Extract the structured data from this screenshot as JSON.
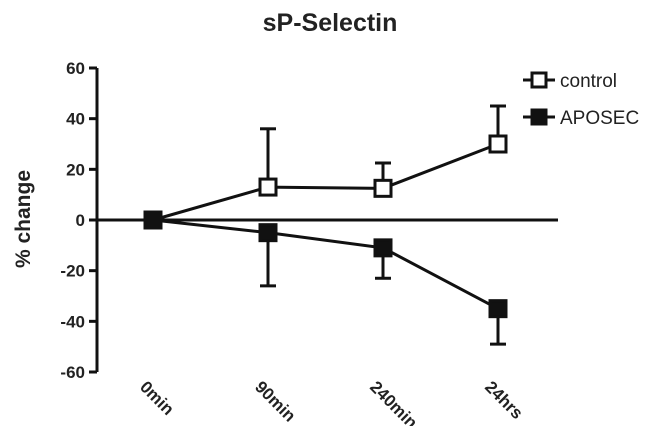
{
  "chart_data": {
    "type": "line",
    "title": "sP-Selectin",
    "xlabel": "",
    "ylabel": "% change",
    "categories": [
      "0min",
      "90min",
      "240min",
      "24hrs"
    ],
    "ylim": [
      -60,
      60
    ],
    "yticks": [
      60,
      40,
      20,
      0,
      -20,
      -40,
      -60
    ],
    "legend_position": "top-right",
    "series": [
      {
        "name": "control",
        "marker": "open-square",
        "values": [
          0,
          13,
          12.5,
          30
        ],
        "error": [
          0,
          23,
          10,
          15
        ]
      },
      {
        "name": "APOSEC",
        "marker": "filled-square",
        "values": [
          0,
          -5,
          -11,
          -35
        ],
        "error": [
          0,
          21,
          12,
          14
        ]
      }
    ],
    "colors": {
      "line": "#111111",
      "text": "#222222"
    }
  }
}
